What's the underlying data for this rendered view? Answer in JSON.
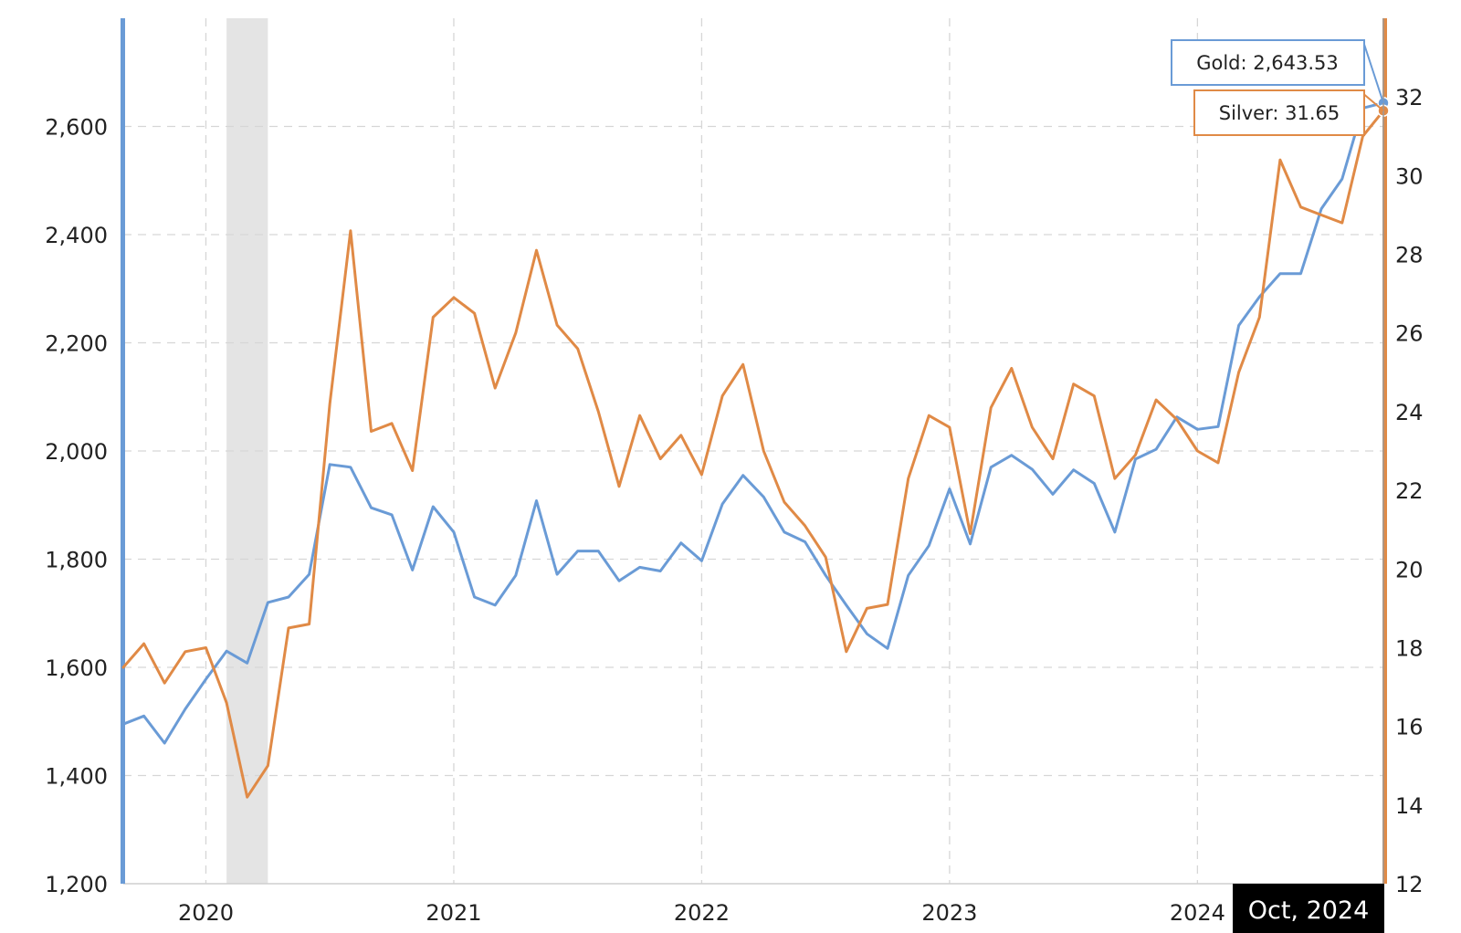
{
  "chart_data": {
    "type": "line",
    "title": "",
    "xlabel": "",
    "ylabel": "",
    "x_range": [
      "2019-09",
      "2024-10"
    ],
    "x_ticks": [
      {
        "label": "2020",
        "value": "2020-01"
      },
      {
        "label": "2021",
        "value": "2021-01"
      },
      {
        "label": "2022",
        "value": "2022-01"
      },
      {
        "label": "2023",
        "value": "2023-01"
      },
      {
        "label": "2024",
        "value": "2024-01"
      }
    ],
    "y_left": {
      "range": [
        1200,
        2800
      ],
      "ticks": [
        1200,
        1400,
        1600,
        1800,
        2000,
        2200,
        2400,
        2600
      ],
      "tick_labels": [
        "1,200",
        "1,400",
        "1,600",
        "1,800",
        "2,000",
        "2,200",
        "2,400",
        "2,600"
      ],
      "color": "#6a9bd6"
    },
    "y_right": {
      "range": [
        12,
        34
      ],
      "ticks": [
        12,
        14,
        16,
        18,
        20,
        22,
        24,
        26,
        28,
        30,
        32
      ],
      "tick_labels": [
        "12",
        "14",
        "16",
        "18",
        "20",
        "22",
        "24",
        "26",
        "28",
        "30",
        "32"
      ],
      "color": "#e08a46"
    },
    "grid": true,
    "shaded_period": {
      "start": "2020-02",
      "end": "2020-04",
      "color": "#e4e4e4"
    },
    "x": [
      "2019-09",
      "2019-10",
      "2019-11",
      "2019-12",
      "2020-01",
      "2020-02",
      "2020-03",
      "2020-04",
      "2020-05",
      "2020-06",
      "2020-07",
      "2020-08",
      "2020-09",
      "2020-10",
      "2020-11",
      "2020-12",
      "2021-01",
      "2021-02",
      "2021-03",
      "2021-04",
      "2021-05",
      "2021-06",
      "2021-07",
      "2021-08",
      "2021-09",
      "2021-10",
      "2021-11",
      "2021-12",
      "2022-01",
      "2022-02",
      "2022-03",
      "2022-04",
      "2022-05",
      "2022-06",
      "2022-07",
      "2022-08",
      "2022-09",
      "2022-10",
      "2022-11",
      "2022-12",
      "2023-01",
      "2023-02",
      "2023-03",
      "2023-04",
      "2023-05",
      "2023-06",
      "2023-07",
      "2023-08",
      "2023-09",
      "2023-10",
      "2023-11",
      "2023-12",
      "2024-01",
      "2024-02",
      "2024-03",
      "2024-04",
      "2024-05",
      "2024-06",
      "2024-07",
      "2024-08",
      "2024-09",
      "2024-10"
    ],
    "series": [
      {
        "name": "Gold",
        "axis": "left",
        "color": "#6a9bd6",
        "values": [
          1495,
          1510,
          1460,
          1523,
          1578,
          1630,
          1608,
          1720,
          1730,
          1772,
          1975,
          1970,
          1895,
          1882,
          1780,
          1897,
          1850,
          1730,
          1715,
          1770,
          1908,
          1772,
          1815,
          1815,
          1760,
          1785,
          1778,
          1830,
          1797,
          1902,
          1955,
          1915,
          1850,
          1832,
          1770,
          1715,
          1662,
          1635,
          1770,
          1825,
          1930,
          1828,
          1970,
          1992,
          1966,
          1920,
          1965,
          1940,
          1850,
          1985,
          2003,
          2063,
          2040,
          2045,
          2232,
          2285,
          2328,
          2328,
          2448,
          2503,
          2634,
          2643.53
        ]
      },
      {
        "name": "Silver",
        "axis": "right",
        "color": "#e08a46",
        "values": [
          17.5,
          18.1,
          17.1,
          17.9,
          18.0,
          16.6,
          14.2,
          15.0,
          18.5,
          18.6,
          24.2,
          28.6,
          23.5,
          23.7,
          22.5,
          26.4,
          26.9,
          26.5,
          24.6,
          26.0,
          28.1,
          26.2,
          25.6,
          24.0,
          22.1,
          23.9,
          22.8,
          23.4,
          22.4,
          24.4,
          25.2,
          23.0,
          21.7,
          21.1,
          20.3,
          17.9,
          19.0,
          19.1,
          22.3,
          23.9,
          23.6,
          20.9,
          24.1,
          25.1,
          23.6,
          22.8,
          24.7,
          24.4,
          22.3,
          22.9,
          24.3,
          23.8,
          23.0,
          22.7,
          25.0,
          26.4,
          30.4,
          29.2,
          29.0,
          28.8,
          31.0,
          31.65
        ]
      }
    ],
    "tooltips": [
      {
        "series": "Gold",
        "label": "Gold: 2,643.53"
      },
      {
        "series": "Silver",
        "label": "Silver: 31.65"
      }
    ],
    "crosshair_label": "Oct, 2024"
  }
}
